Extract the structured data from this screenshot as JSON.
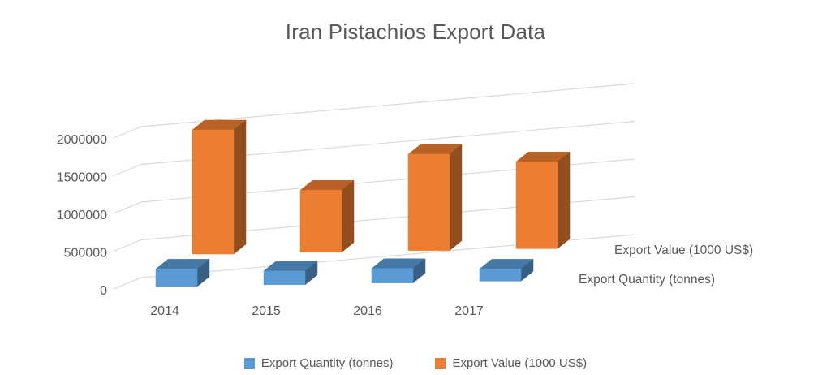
{
  "chart_data": {
    "type": "bar",
    "style": "3d-clustered-column",
    "title": "Iran Pistachios Export Data",
    "categories": [
      "2014",
      "2015",
      "2016",
      "2017"
    ],
    "series": [
      {
        "name": "Export Quantity (tonnes)",
        "color": "#5B9BD5",
        "values": [
          230000,
          180000,
          190000,
          160000
        ]
      },
      {
        "name": "Export Value (1000 US$)",
        "color": "#ED7D31",
        "values": [
          2000000,
          1000000,
          1550000,
          1400000
        ]
      }
    ],
    "depth_axis_labels": [
      "Export Quantity (tonnes)",
      "Export Value (1000 US$)"
    ],
    "yticks": [
      0,
      500000,
      1000000,
      1500000,
      2000000
    ],
    "ylim": [
      0,
      2000000
    ],
    "xlabel": "",
    "ylabel": "",
    "grid": true,
    "legend_position": "bottom"
  },
  "colors": {
    "text": "#595959",
    "gridline": "#D9D9D9",
    "background": "#FFFFFF",
    "quantity_series": "#5B9BD5",
    "value_series": "#ED7D31"
  }
}
